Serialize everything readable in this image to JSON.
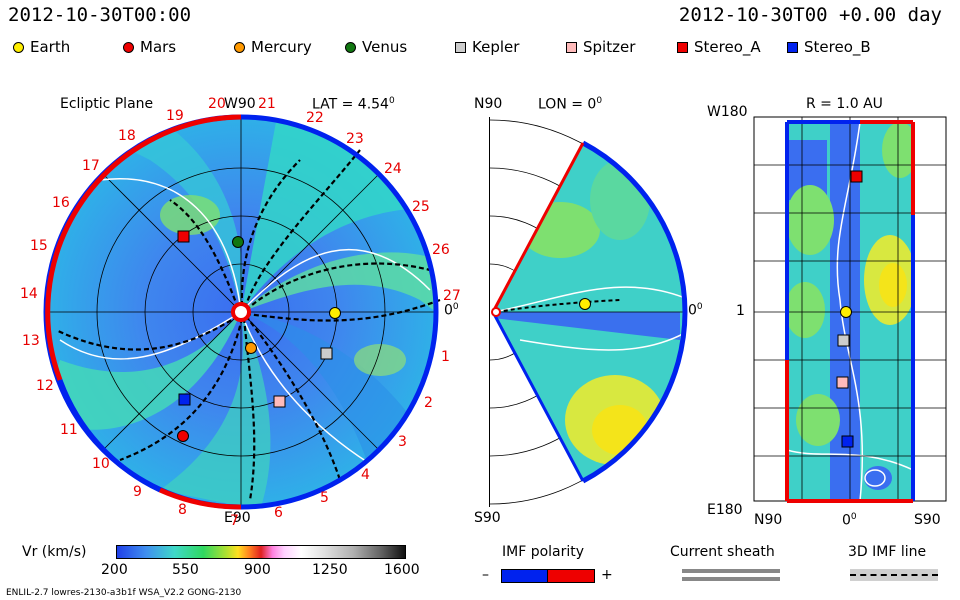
{
  "header": {
    "left_time": "2012-10-30T00:00",
    "right_time": "2012-10-30T00 +0.00 day"
  },
  "legend": [
    {
      "name": "Earth",
      "color": "#ffee00",
      "shape": "circle"
    },
    {
      "name": "Mars",
      "color": "#ee0000",
      "shape": "circle"
    },
    {
      "name": "Mercury",
      "color": "#ff9900",
      "shape": "circle"
    },
    {
      "name": "Venus",
      "color": "#117711",
      "shape": "circle"
    },
    {
      "name": "Kepler",
      "color": "#cccccc",
      "shape": "square"
    },
    {
      "name": "Spitzer",
      "color": "#ffbbbb",
      "shape": "square"
    },
    {
      "name": "Stereo_A",
      "color": "#ee0000",
      "shape": "square"
    },
    {
      "name": "Stereo_B",
      "color": "#0022ee",
      "shape": "square"
    }
  ],
  "ecliptic": {
    "title": "Ecliptic Plane",
    "top_label": "W90",
    "lat_label": "LAT = 4.54",
    "lat_degree": "0",
    "right_label": "0",
    "right_degree": "0",
    "bottom_label": "E90",
    "numbers": [
      "19",
      "20",
      "21",
      "22",
      "23",
      "24",
      "25",
      "26",
      "27",
      "1",
      "2",
      "3",
      "4",
      "5",
      "6",
      "7",
      "8",
      "9",
      "10",
      "11",
      "12",
      "13",
      "14",
      "15",
      "16",
      "17",
      "18"
    ]
  },
  "meridional": {
    "top_label": "N90",
    "lon_label": "LON = 0",
    "lon_degree": "0",
    "right_label": "0",
    "right_degree": "0",
    "bottom_label": "S90"
  },
  "map": {
    "top_left": "W180",
    "title": "R = 1.0 AU",
    "mid_label": "1",
    "bottom_left": "E180",
    "x_left": "N90",
    "x_mid": "0",
    "x_mid_degree": "0",
    "x_right": "S90"
  },
  "colorbar": {
    "title": "Vr (km/s)",
    "ticks": [
      "200",
      "550",
      "900",
      "1250",
      "1600"
    ],
    "range": [
      200,
      1600
    ]
  },
  "imf": {
    "title": "IMF polarity",
    "minus": "–",
    "plus": "+"
  },
  "sheath": {
    "title": "Current sheath"
  },
  "imf3d": {
    "title": "3D IMF line"
  },
  "footer": {
    "model": "ENLIL-2.7 lowres-2130-a3b1f WSA_V2.2 GONG-2130"
  },
  "colors": {
    "blue_polarity": "#0022ee",
    "red_polarity": "#ee0000"
  }
}
